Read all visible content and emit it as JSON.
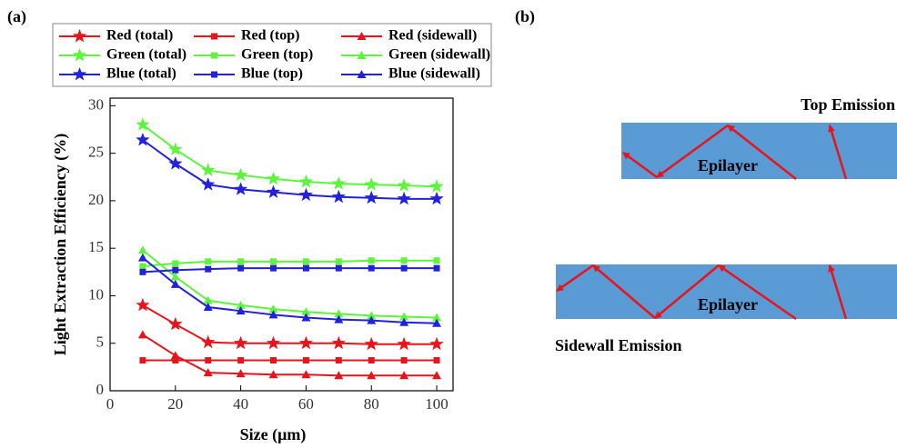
{
  "panels": {
    "a": "(a)",
    "b": "(b)"
  },
  "chart_data": {
    "type": "line",
    "x_label": "Size (μm)",
    "y_label": "Light Extraction Efficiency (%)",
    "x": [
      10,
      20,
      30,
      40,
      50,
      60,
      70,
      80,
      90,
      100
    ],
    "xlim": [
      0,
      105
    ],
    "xticks": [
      0,
      20,
      40,
      60,
      80,
      100
    ],
    "ylim": [
      0,
      30.8
    ],
    "yticks": [
      0,
      5,
      10,
      15,
      20,
      25,
      30
    ],
    "legend": "top",
    "series": [
      {
        "name": "Red (total)",
        "color": "#e8141b",
        "marker": "star",
        "values": [
          9.0,
          7.0,
          5.1,
          5.0,
          5.0,
          5.0,
          5.0,
          4.9,
          4.9,
          4.9
        ]
      },
      {
        "name": "Red (top)",
        "color": "#e8141b",
        "marker": "square",
        "values": [
          3.2,
          3.2,
          3.2,
          3.2,
          3.2,
          3.2,
          3.2,
          3.2,
          3.2,
          3.2
        ]
      },
      {
        "name": "Red (sidewall)",
        "color": "#e8141b",
        "marker": "triangle",
        "values": [
          5.9,
          3.7,
          1.9,
          1.8,
          1.7,
          1.7,
          1.6,
          1.6,
          1.6,
          1.6
        ]
      },
      {
        "name": "Green (total)",
        "color": "#5cf53c",
        "marker": "star",
        "values": [
          28.0,
          25.4,
          23.2,
          22.7,
          22.3,
          22.0,
          21.8,
          21.7,
          21.6,
          21.5
        ]
      },
      {
        "name": "Green (top)",
        "color": "#5cf53c",
        "marker": "square",
        "values": [
          13.1,
          13.4,
          13.6,
          13.6,
          13.6,
          13.6,
          13.6,
          13.7,
          13.7,
          13.7
        ]
      },
      {
        "name": "Green (sidewall)",
        "color": "#5cf53c",
        "marker": "triangle",
        "values": [
          14.8,
          12.0,
          9.5,
          9.0,
          8.6,
          8.3,
          8.1,
          7.9,
          7.8,
          7.7
        ]
      },
      {
        "name": "Blue (total)",
        "color": "#2222dd",
        "marker": "star",
        "values": [
          26.4,
          23.9,
          21.7,
          21.2,
          20.9,
          20.6,
          20.4,
          20.3,
          20.2,
          20.2
        ]
      },
      {
        "name": "Blue (top)",
        "color": "#2222dd",
        "marker": "square",
        "values": [
          12.5,
          12.7,
          12.8,
          12.9,
          12.9,
          12.9,
          12.9,
          12.9,
          12.9,
          12.9
        ]
      },
      {
        "name": "Blue (sidewall)",
        "color": "#2222dd",
        "marker": "triangle",
        "values": [
          14.0,
          11.2,
          8.8,
          8.4,
          8.0,
          7.7,
          7.5,
          7.4,
          7.2,
          7.1
        ]
      }
    ]
  },
  "diagram": {
    "top_title": "Top Emission",
    "top_layer": "Epilayer",
    "bottom_layer": "Epilayer",
    "bottom_title": "Sidewall Emission"
  }
}
